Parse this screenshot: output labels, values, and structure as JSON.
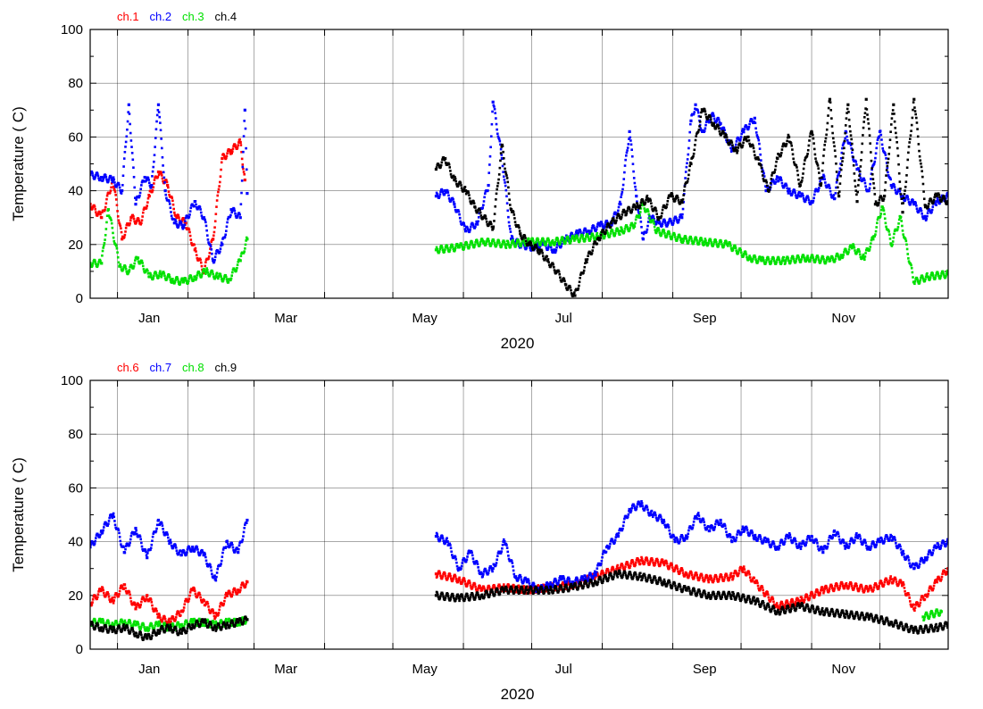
{
  "chart_data": [
    {
      "type": "scatter",
      "title": "",
      "xlabel": "2020",
      "ylabel": "Temperature ( C)",
      "ylim": [
        0,
        100
      ],
      "yticks": [
        0,
        20,
        40,
        60,
        80,
        100
      ],
      "xlim": [
        "2019-12-20",
        "2020-12-31"
      ],
      "xticks": [
        {
          "label": "Jan",
          "date": "2020-01-15"
        },
        {
          "label": "Mar",
          "date": "2020-03-15"
        },
        {
          "label": "May",
          "date": "2020-05-15"
        },
        {
          "label": "Jul",
          "date": "2020-07-15"
        },
        {
          "label": "Sep",
          "date": "2020-09-15"
        },
        {
          "label": "Nov",
          "date": "2020-11-15"
        }
      ],
      "grid": true,
      "legend_position": "top-left",
      "series": [
        {
          "name": "ch.1",
          "color": "#ff0000",
          "x": [
            "2019-12-20",
            "2019-12-25",
            "2019-12-30",
            "2020-01-03",
            "2020-01-07",
            "2020-01-11",
            "2020-01-15",
            "2020-01-19",
            "2020-01-23",
            "2020-01-27",
            "2020-01-31",
            "2020-02-04",
            "2020-02-08",
            "2020-02-12",
            "2020-02-16",
            "2020-02-20",
            "2020-02-24",
            "2020-02-26"
          ],
          "y": [
            35,
            30,
            44,
            22,
            30,
            28,
            38,
            47,
            42,
            30,
            28,
            18,
            10,
            22,
            52,
            55,
            58,
            44
          ]
        },
        {
          "name": "ch.2",
          "color": "#0000ff",
          "x": [
            "2019-12-20",
            "2019-12-25",
            "2019-12-30",
            "2020-01-03",
            "2020-01-06",
            "2020-01-09",
            "2020-01-13",
            "2020-01-16",
            "2020-01-19",
            "2020-01-22",
            "2020-01-26",
            "2020-01-30",
            "2020-02-04",
            "2020-02-08",
            "2020-02-12",
            "2020-02-16",
            "2020-02-20",
            "2020-02-24",
            "2020-02-26",
            "2020-02-27",
            "2020-05-20",
            "2020-05-24",
            "2020-05-28",
            "2020-06-02",
            "2020-06-07",
            "2020-06-12",
            "2020-06-14",
            "2020-06-18",
            "2020-06-22",
            "2020-06-26",
            "2020-07-01",
            "2020-07-06",
            "2020-07-11",
            "2020-07-16",
            "2020-07-21",
            "2020-07-26",
            "2020-07-31",
            "2020-08-05",
            "2020-08-09",
            "2020-08-13",
            "2020-08-16",
            "2020-08-19",
            "2020-08-22",
            "2020-08-26",
            "2020-08-30",
            "2020-09-05",
            "2020-09-09",
            "2020-09-11",
            "2020-09-14",
            "2020-09-18",
            "2020-09-22",
            "2020-09-27",
            "2020-10-02",
            "2020-10-07",
            "2020-10-12",
            "2020-10-17",
            "2020-10-22",
            "2020-10-27",
            "2020-11-01",
            "2020-11-06",
            "2020-11-11",
            "2020-11-16",
            "2020-11-21",
            "2020-11-26",
            "2020-12-01",
            "2020-12-06",
            "2020-12-11",
            "2020-12-16",
            "2020-12-21",
            "2020-12-26",
            "2020-12-31"
          ],
          "y": [
            46,
            45,
            44,
            40,
            72,
            35,
            45,
            42,
            72,
            40,
            28,
            27,
            36,
            30,
            14,
            20,
            33,
            30,
            70,
            39,
            38,
            40,
            35,
            25,
            28,
            42,
            73,
            52,
            22,
            20,
            19,
            20,
            18,
            22,
            24,
            25,
            27,
            28,
            35,
            62,
            38,
            22,
            30,
            28,
            28,
            30,
            66,
            72,
            62,
            68,
            65,
            55,
            62,
            67,
            40,
            45,
            40,
            38,
            36,
            45,
            37,
            62,
            48,
            40,
            62,
            42,
            38,
            35,
            30,
            36,
            38
          ]
        },
        {
          "name": "ch.3",
          "color": "#00e000",
          "x": [
            "2019-12-20",
            "2019-12-25",
            "2019-12-28",
            "2020-01-02",
            "2020-01-06",
            "2020-01-10",
            "2020-01-15",
            "2020-01-20",
            "2020-01-25",
            "2020-01-30",
            "2020-02-04",
            "2020-02-09",
            "2020-02-14",
            "2020-02-19",
            "2020-02-24",
            "2020-02-27",
            "2020-05-20",
            "2020-05-30",
            "2020-06-10",
            "2020-06-20",
            "2020-06-30",
            "2020-07-10",
            "2020-07-20",
            "2020-07-30",
            "2020-08-09",
            "2020-08-15",
            "2020-08-19",
            "2020-08-25",
            "2020-09-05",
            "2020-09-15",
            "2020-09-25",
            "2020-10-05",
            "2020-10-10",
            "2020-10-20",
            "2020-10-30",
            "2020-11-09",
            "2020-11-14",
            "2020-11-19",
            "2020-11-24",
            "2020-11-28",
            "2020-12-02",
            "2020-12-06",
            "2020-12-10",
            "2020-12-16",
            "2020-12-22",
            "2020-12-31"
          ],
          "y": [
            13,
            13,
            33,
            12,
            10,
            15,
            8,
            9,
            7,
            6,
            8,
            10,
            8,
            7,
            14,
            22,
            18,
            19,
            21,
            20,
            21,
            21,
            22,
            23,
            25,
            27,
            35,
            25,
            22,
            21,
            20,
            15,
            14,
            14,
            15,
            14,
            16,
            19,
            15,
            22,
            34,
            20,
            30,
            6,
            8,
            9
          ]
        },
        {
          "name": "ch.4",
          "color": "#000000",
          "x": [
            "2020-05-20",
            "2020-05-24",
            "2020-05-28",
            "2020-06-02",
            "2020-06-06",
            "2020-06-10",
            "2020-06-14",
            "2020-06-18",
            "2020-06-22",
            "2020-06-26",
            "2020-06-30",
            "2020-07-04",
            "2020-07-08",
            "2020-07-12",
            "2020-07-16",
            "2020-07-20",
            "2020-07-25",
            "2020-07-30",
            "2020-08-05",
            "2020-08-11",
            "2020-08-16",
            "2020-08-21",
            "2020-08-26",
            "2020-08-31",
            "2020-09-05",
            "2020-09-09",
            "2020-09-14",
            "2020-09-19",
            "2020-09-24",
            "2020-09-29",
            "2020-10-04",
            "2020-10-09",
            "2020-10-13",
            "2020-10-17",
            "2020-10-22",
            "2020-10-27",
            "2020-11-01",
            "2020-11-05",
            "2020-11-09",
            "2020-11-13",
            "2020-11-17",
            "2020-11-21",
            "2020-11-25",
            "2020-11-29",
            "2020-12-03",
            "2020-12-07",
            "2020-12-11",
            "2020-12-16",
            "2020-12-21",
            "2020-12-26",
            "2020-12-31"
          ],
          "y": [
            48,
            52,
            44,
            40,
            34,
            30,
            26,
            57,
            33,
            24,
            20,
            18,
            14,
            10,
            5,
            1,
            14,
            22,
            28,
            32,
            34,
            37,
            30,
            38,
            36,
            50,
            70,
            65,
            60,
            55,
            60,
            50,
            40,
            52,
            60,
            42,
            62,
            42,
            74,
            38,
            72,
            36,
            74,
            35,
            38,
            72,
            32,
            74,
            34,
            38,
            36
          ]
        }
      ]
    },
    {
      "type": "scatter",
      "title": "",
      "xlabel": "2020",
      "ylabel": "Temperature ( C)",
      "ylim": [
        0,
        100
      ],
      "yticks": [
        0,
        20,
        40,
        60,
        80,
        100
      ],
      "xlim": [
        "2019-12-20",
        "2020-12-31"
      ],
      "xticks": [
        {
          "label": "Jan",
          "date": "2020-01-15"
        },
        {
          "label": "Mar",
          "date": "2020-03-15"
        },
        {
          "label": "May",
          "date": "2020-05-15"
        },
        {
          "label": "Jul",
          "date": "2020-07-15"
        },
        {
          "label": "Sep",
          "date": "2020-09-15"
        },
        {
          "label": "Nov",
          "date": "2020-11-15"
        }
      ],
      "grid": true,
      "legend_position": "top-left",
      "series": [
        {
          "name": "ch.6",
          "color": "#ff0000",
          "x": [
            "2019-12-20",
            "2019-12-25",
            "2019-12-30",
            "2020-01-04",
            "2020-01-09",
            "2020-01-14",
            "2020-01-19",
            "2020-01-24",
            "2020-01-29",
            "2020-02-03",
            "2020-02-08",
            "2020-02-13",
            "2020-02-18",
            "2020-02-23",
            "2020-02-27",
            "2020-05-20",
            "2020-05-30",
            "2020-06-09",
            "2020-06-19",
            "2020-06-29",
            "2020-07-09",
            "2020-07-19",
            "2020-07-29",
            "2020-08-08",
            "2020-08-18",
            "2020-08-28",
            "2020-09-07",
            "2020-09-17",
            "2020-09-27",
            "2020-10-02",
            "2020-10-07",
            "2020-10-17",
            "2020-10-27",
            "2020-11-06",
            "2020-11-16",
            "2020-11-26",
            "2020-12-06",
            "2020-12-11",
            "2020-12-16",
            "2020-12-21",
            "2020-12-26",
            "2020-12-31"
          ],
          "y": [
            17,
            22,
            18,
            24,
            15,
            20,
            12,
            10,
            14,
            22,
            18,
            12,
            20,
            22,
            25,
            28,
            26,
            22,
            23,
            22,
            23,
            24,
            27,
            30,
            33,
            32,
            28,
            26,
            27,
            30,
            25,
            16,
            18,
            22,
            24,
            22,
            26,
            24,
            15,
            20,
            25,
            30
          ]
        },
        {
          "name": "ch.7",
          "color": "#0000ff",
          "x": [
            "2019-12-20",
            "2019-12-25",
            "2019-12-30",
            "2020-01-04",
            "2020-01-09",
            "2020-01-14",
            "2020-01-19",
            "2020-01-24",
            "2020-01-29",
            "2020-02-03",
            "2020-02-08",
            "2020-02-13",
            "2020-02-18",
            "2020-02-23",
            "2020-02-27",
            "2020-05-20",
            "2020-05-25",
            "2020-05-30",
            "2020-06-04",
            "2020-06-09",
            "2020-06-14",
            "2020-06-19",
            "2020-06-24",
            "2020-06-29",
            "2020-07-04",
            "2020-07-09",
            "2020-07-14",
            "2020-07-19",
            "2020-07-24",
            "2020-07-29",
            "2020-08-03",
            "2020-08-08",
            "2020-08-13",
            "2020-08-18",
            "2020-08-23",
            "2020-08-28",
            "2020-09-02",
            "2020-09-07",
            "2020-09-12",
            "2020-09-17",
            "2020-09-22",
            "2020-09-27",
            "2020-10-02",
            "2020-10-07",
            "2020-10-12",
            "2020-10-17",
            "2020-10-22",
            "2020-10-27",
            "2020-11-01",
            "2020-11-06",
            "2020-11-11",
            "2020-11-16",
            "2020-11-21",
            "2020-11-26",
            "2020-12-01",
            "2020-12-06",
            "2020-12-11",
            "2020-12-16",
            "2020-12-21",
            "2020-12-26",
            "2020-12-31"
          ],
          "y": [
            38,
            44,
            50,
            36,
            45,
            34,
            48,
            40,
            35,
            38,
            35,
            26,
            40,
            36,
            48,
            42,
            40,
            30,
            36,
            28,
            30,
            40,
            27,
            25,
            22,
            24,
            26,
            25,
            26,
            28,
            38,
            42,
            52,
            54,
            50,
            48,
            40,
            42,
            50,
            44,
            48,
            40,
            45,
            42,
            40,
            38,
            42,
            38,
            42,
            36,
            44,
            38,
            42,
            38,
            40,
            42,
            36,
            30,
            34,
            38,
            40
          ]
        },
        {
          "name": "ch.8",
          "color": "#00e000",
          "x": [
            "2019-12-20",
            "2019-12-25",
            "2019-12-30",
            "2020-01-04",
            "2020-01-09",
            "2020-01-14",
            "2020-01-19",
            "2020-01-24",
            "2020-01-29",
            "2020-02-03",
            "2020-02-08",
            "2020-02-13",
            "2020-02-18",
            "2020-02-23",
            "2020-02-27",
            "2020-12-20",
            "2020-12-28"
          ],
          "y": [
            10,
            10,
            9,
            10,
            9,
            8,
            9,
            8,
            9,
            10,
            10,
            9,
            10,
            10,
            11,
            12,
            14
          ]
        },
        {
          "name": "ch.9",
          "color": "#000000",
          "x": [
            "2019-12-20",
            "2019-12-25",
            "2019-12-30",
            "2020-01-04",
            "2020-01-09",
            "2020-01-14",
            "2020-01-19",
            "2020-01-24",
            "2020-01-29",
            "2020-02-03",
            "2020-02-08",
            "2020-02-13",
            "2020-02-18",
            "2020-02-23",
            "2020-02-27",
            "2020-05-20",
            "2020-05-30",
            "2020-06-09",
            "2020-06-19",
            "2020-06-29",
            "2020-07-09",
            "2020-07-19",
            "2020-07-29",
            "2020-08-08",
            "2020-08-18",
            "2020-08-28",
            "2020-09-07",
            "2020-09-17",
            "2020-09-27",
            "2020-10-07",
            "2020-10-17",
            "2020-10-27",
            "2020-11-06",
            "2020-11-16",
            "2020-11-26",
            "2020-12-06",
            "2020-12-16",
            "2020-12-26",
            "2020-12-31"
          ],
          "y": [
            9,
            8,
            7,
            8,
            6,
            4,
            7,
            8,
            6,
            9,
            10,
            8,
            9,
            10,
            11,
            20,
            19,
            20,
            22,
            22,
            22,
            23,
            25,
            28,
            27,
            25,
            22,
            20,
            20,
            18,
            14,
            16,
            14,
            13,
            12,
            10,
            7,
            8,
            9
          ]
        }
      ]
    }
  ]
}
